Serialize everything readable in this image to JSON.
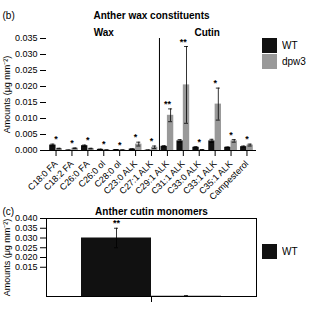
{
  "chart_data": [
    {
      "type": "bar",
      "title": "Anther wax constituents",
      "panel_label": "(b)",
      "categories": [
        "C18:0 FA",
        "C18:2 FA",
        "C26:0 FA",
        "C26:0 ol",
        "C28:0 ol",
        "C23:0 ALK",
        "C27:1 ALK",
        "C29:1 ALK",
        "C31:1 ALK",
        "C33:0 ALK",
        "C33:1 ALK",
        "C35:1 ALK",
        "Campesterol"
      ],
      "groups": [
        {
          "name": "Wax",
          "categories": [
            "C18:0 FA",
            "C18:2 FA",
            "C26:0 FA",
            "C26:0 ol",
            "C28:0 ol",
            "C23:0 ALK",
            "C27:1 ALK"
          ]
        },
        {
          "name": "Cutin",
          "categories": [
            "C29:1 ALK",
            "C31:1 ALK",
            "C33:0 ALK",
            "C33:1 ALK",
            "C35:1 ALK",
            "Campesterol"
          ]
        }
      ],
      "series": [
        {
          "name": "WT",
          "color": "#111111",
          "values": [
            0.0017,
            0.0001,
            0.0015,
            0.00035,
            0.00025,
            0.00045,
            0.0001,
            0.0013,
            0.003,
            0.001,
            0.003,
            0.001,
            0.0012
          ],
          "errors": [
            0.0003,
            5e-05,
            0.0002,
            7e-05,
            5e-05,
            8e-05,
            8e-05,
            0.0002,
            0.0004,
            0.0002,
            0.0005,
            0.0001,
            0.0002
          ]
        },
        {
          "name": "dpw3",
          "color": "#999999",
          "values": [
            0.0006,
            0.0007,
            0.0006,
            0.00015,
            0.00015,
            0.002,
            0.001,
            0.011,
            0.0205,
            0.0002,
            0.0145,
            0.003,
            0.0017
          ],
          "errors": [
            0.0001,
            0.0001,
            0.0001,
            5e-05,
            5e-05,
            0.0006,
            0.0004,
            0.002,
            0.012,
            0.0001,
            0.005,
            0.0004,
            0.0003
          ]
        }
      ],
      "significance": [
        "*",
        "*",
        "*",
        "*",
        "*",
        "*",
        "*",
        "**",
        "**",
        "*",
        "*",
        "*",
        "*"
      ],
      "ylabel": "Amounts (μg mm⁻²)",
      "ylim": [
        0,
        0.035
      ],
      "yticks": [
        {
          "value": 0,
          "label": "0.000"
        },
        0.005,
        {
          "value": 0.01,
          "label": "0.010"
        },
        0.015,
        {
          "value": 0.02,
          "label": "0.020"
        },
        0.025,
        {
          "value": 0.03,
          "label": "0.030"
        },
        0.035
      ],
      "legend": "upper right"
    },
    {
      "type": "bar",
      "title": "Anther cutin monomers",
      "panel_label": "(c)",
      "categories": [
        null
      ],
      "series": [
        {
          "name": "WT",
          "color": "#111111",
          "values": [
            0.03
          ],
          "errors": [
            0.005
          ],
          "significance": [
            "**"
          ]
        },
        {
          "color": "#999999",
          "values": [
            0.0003
          ],
          "errors": [
            0.0001
          ]
        }
      ],
      "ylabel": "Amounts (μg mm⁻²)",
      "ylim": [
        0,
        0.04
      ],
      "yticks": [
        0.015,
        {
          "value": 0.02,
          "label": "0.020"
        },
        0.025,
        {
          "value": 0.03,
          "label": "0.030"
        },
        0.035,
        {
          "value": 0.04,
          "label": "0.040"
        }
      ],
      "legend": "center right"
    }
  ]
}
